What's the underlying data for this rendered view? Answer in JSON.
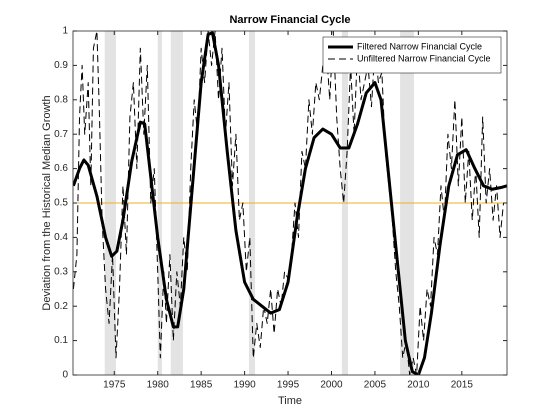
{
  "chart_data": {
    "type": "line",
    "title": "Narrow Financial Cycle",
    "xlabel": "Time",
    "ylabel": "Deviation from the Historical Median Growth",
    "xlim": [
      1970.25,
      2020.2
    ],
    "ylim": [
      0,
      1
    ],
    "xticks": [
      1975,
      1980,
      1985,
      1990,
      1995,
      2000,
      2005,
      2010,
      2015
    ],
    "yticks": [
      0,
      0.1,
      0.2,
      0.3,
      0.4,
      0.5,
      0.6,
      0.7,
      0.8,
      0.9,
      1
    ],
    "legend": "northeast",
    "shaded_spans": [
      [
        1973.9,
        1975.2
      ],
      [
        1980,
        1980.5
      ],
      [
        1981.5,
        1982.9
      ],
      [
        1990.5,
        1991.2
      ],
      [
        2001.2,
        2001.9
      ],
      [
        2007.9,
        2009.5
      ]
    ],
    "span_color": "#e3e3e3",
    "hline": {
      "value": 0.5,
      "color": "#edb120"
    },
    "series": [
      {
        "name": "Filtered Narrow Financial Cycle",
        "color": "#000000",
        "style": "solid",
        "width": 3,
        "x": [
          1970.3,
          1971,
          1971.5,
          1972,
          1973,
          1974,
          1974.7,
          1975.3,
          1976,
          1977,
          1978,
          1978.5,
          1979,
          1980,
          1981,
          1981.8,
          1982.3,
          1983,
          1984,
          1985,
          1985.8,
          1986.3,
          1987,
          1988,
          1989,
          1990,
          1991,
          1992,
          1993,
          1994,
          1995,
          1996,
          1997,
          1998,
          1999,
          2000,
          2001,
          2002,
          2003,
          2004,
          2005,
          2005.7,
          2006.5,
          2007.5,
          2008.5,
          2009.3,
          2010,
          2010.7,
          2011.5,
          2012.5,
          2013.5,
          2014.5,
          2015.5,
          2016.5,
          2017.5,
          2018.5,
          2019.5,
          2020.2
        ],
        "values": [
          0.55,
          0.6,
          0.625,
          0.61,
          0.52,
          0.4,
          0.345,
          0.36,
          0.45,
          0.62,
          0.735,
          0.73,
          0.62,
          0.4,
          0.22,
          0.14,
          0.14,
          0.25,
          0.55,
          0.85,
          0.99,
          0.995,
          0.9,
          0.65,
          0.42,
          0.27,
          0.22,
          0.2,
          0.18,
          0.19,
          0.27,
          0.45,
          0.6,
          0.69,
          0.715,
          0.7,
          0.66,
          0.66,
          0.73,
          0.82,
          0.85,
          0.8,
          0.6,
          0.35,
          0.1,
          0.01,
          0,
          0.05,
          0.18,
          0.38,
          0.55,
          0.64,
          0.655,
          0.6,
          0.55,
          0.54,
          0.545,
          0.55
        ]
      },
      {
        "name": "Unfiltered Narrow Financial Cycle",
        "color": "#000000",
        "style": "dashed",
        "width": 1,
        "x": [
          1970.3,
          1970.7,
          1971,
          1971.3,
          1971.6,
          1972,
          1972.3,
          1972.6,
          1973,
          1973.3,
          1973.6,
          1974,
          1974.4,
          1974.8,
          1975.2,
          1975.6,
          1976,
          1976.4,
          1976.8,
          1977.2,
          1977.6,
          1978,
          1978.4,
          1978.8,
          1979.2,
          1979.6,
          1980,
          1980.3,
          1980.7,
          1981,
          1981.4,
          1981.8,
          1982.2,
          1982.6,
          1983,
          1983.4,
          1983.8,
          1984.2,
          1984.6,
          1985,
          1985.4,
          1985.8,
          1986.2,
          1986.6,
          1987,
          1987.4,
          1987.8,
          1988.2,
          1988.6,
          1989,
          1989.4,
          1989.8,
          1990.2,
          1990.6,
          1991,
          1991.4,
          1991.8,
          1992.2,
          1992.6,
          1993,
          1993.4,
          1993.8,
          1994.2,
          1994.6,
          1995,
          1995.4,
          1995.8,
          1996.2,
          1996.6,
          1997,
          1997.4,
          1997.8,
          1998.2,
          1998.6,
          1999,
          1999.4,
          1999.8,
          2000.2,
          2000.6,
          2001,
          2001.4,
          2001.8,
          2002.2,
          2002.6,
          2003,
          2003.4,
          2003.8,
          2004.2,
          2004.6,
          2005,
          2005.4,
          2005.8,
          2006.2,
          2006.6,
          2007,
          2007.4,
          2007.8,
          2008.2,
          2008.6,
          2009,
          2009.4,
          2009.8,
          2010.2,
          2010.6,
          2011,
          2011.4,
          2011.8,
          2012.2,
          2012.6,
          2013,
          2013.4,
          2013.8,
          2014.2,
          2014.6,
          2015,
          2015.4,
          2015.8,
          2016.2,
          2016.6,
          2017,
          2017.4,
          2017.8,
          2018.2,
          2018.6,
          2019,
          2019.4,
          2019.8
        ],
        "values": [
          0.25,
          0.35,
          0.75,
          0.9,
          0.7,
          0.85,
          0.55,
          0.95,
          1,
          0.75,
          0.45,
          0.25,
          0.15,
          0.35,
          0.05,
          0.25,
          0.55,
          0.35,
          0.75,
          0.85,
          0.6,
          0.95,
          0.7,
          0.9,
          0.5,
          0.6,
          0.3,
          0.05,
          0.3,
          0.15,
          0.35,
          0.1,
          0.3,
          0.2,
          0.4,
          0.3,
          0.6,
          0.8,
          0.7,
          0.95,
          0.85,
          1,
          0.9,
          1,
          0.8,
          0.95,
          0.7,
          0.85,
          0.55,
          0.7,
          0.45,
          0.5,
          0.3,
          0.4,
          0.05,
          0.15,
          0.08,
          0.2,
          0.15,
          0.25,
          0.12,
          0.25,
          0.2,
          0.3,
          0.28,
          0.35,
          0.5,
          0.4,
          0.65,
          0.6,
          0.8,
          0.7,
          0.85,
          0.8,
          0.9,
          0.95,
          0.8,
          1,
          0.75,
          0.6,
          0.5,
          0.65,
          0.9,
          0.7,
          0.95,
          0.8,
          0.85,
          0.9,
          0.78,
          0.95,
          0.85,
          0.88,
          0.65,
          0.55,
          0.45,
          0.3,
          0.2,
          0.05,
          0.1,
          0,
          0.05,
          0,
          0.2,
          0.1,
          0.25,
          0.2,
          0.4,
          0.35,
          0.55,
          0.45,
          0.7,
          0.6,
          0.8,
          0.55,
          0.75,
          0.5,
          0.65,
          0.45,
          0.6,
          0.4,
          0.75,
          0.5,
          0.6,
          0.45,
          0.55,
          0.4,
          0.5
        ]
      }
    ]
  }
}
